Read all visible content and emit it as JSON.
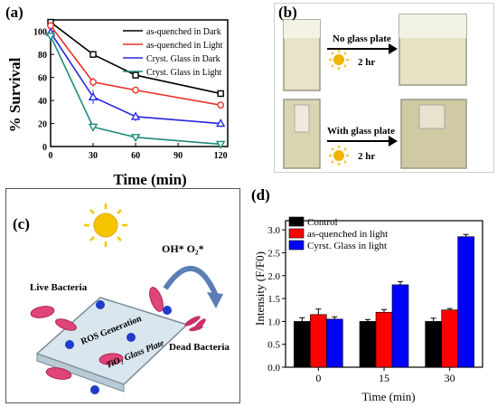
{
  "panels": {
    "a": "(a)",
    "b": "(b)",
    "c": "(c)",
    "d": "(d)"
  },
  "panel_b": {
    "top_label": "No glass plate",
    "top_time": "2 hr",
    "bottom_label": "With glass plate",
    "bottom_time": "2 hr"
  },
  "panel_c": {
    "oh_label": "OH* O₂*",
    "live_bacteria": "Live Bacteria",
    "ros_generation": "ROS Generation",
    "tio2_plate": "TiO₂ Glass Plate",
    "dead_bacteria": "Dead Bacteria"
  },
  "chart_data": [
    {
      "type": "line",
      "xlabel": "Time (min)",
      "ylabel": "% Survival",
      "x": [
        0,
        30,
        60,
        120
      ],
      "xticks": [
        "0",
        "30",
        "60",
        "90",
        "120"
      ],
      "yticks": [
        "0",
        "20",
        "40",
        "60",
        "80",
        "100"
      ],
      "xlim": [
        0,
        125
      ],
      "ylim": [
        0,
        110
      ],
      "legend_position": "top-right",
      "series": [
        {
          "name": "as-quenched in Dark",
          "values": [
            108,
            80,
            62,
            46
          ],
          "errors": [
            2,
            3,
            3,
            3
          ],
          "color": "#000000",
          "marker": "square"
        },
        {
          "name": "as-quenched in Light",
          "values": [
            105,
            56,
            49,
            36
          ],
          "errors": [
            3,
            4,
            3,
            2
          ],
          "color": "#e8312a",
          "marker": "circle"
        },
        {
          "name": "Cryst. Glass in Dark",
          "values": [
            99,
            43,
            26,
            20
          ],
          "errors": [
            3,
            6,
            4,
            3
          ],
          "color": "#2727e0",
          "marker": "triangle"
        },
        {
          "name": "Cryst. Glass in Light",
          "values": [
            96,
            17,
            8,
            2
          ],
          "errors": [
            2,
            2,
            1,
            1
          ],
          "color": "#1e8a7a",
          "marker": "triangle-down"
        }
      ]
    },
    {
      "type": "bar",
      "xlabel": "Time (min)",
      "ylabel": "Intensity (F/F0)",
      "categories": [
        "0",
        "15",
        "30"
      ],
      "yticks": [
        "0.0",
        "0.5",
        "1.0",
        "1.5",
        "2.0",
        "2.5",
        "3.0"
      ],
      "ylim": [
        0,
        3.2
      ],
      "legend_position": "top-left",
      "series": [
        {
          "name": "Control",
          "values": [
            1.0,
            1.0,
            1.0
          ],
          "errors": [
            0.08,
            0.04,
            0.07
          ],
          "color": "#000000"
        },
        {
          "name": "as-quenched in light",
          "values": [
            1.15,
            1.2,
            1.25
          ],
          "errors": [
            0.12,
            0.06,
            0.03
          ],
          "color": "#ff0000"
        },
        {
          "name": "Cyrst. Glass in light",
          "values": [
            1.05,
            1.8,
            2.85
          ],
          "errors": [
            0.05,
            0.07,
            0.05
          ],
          "color": "#0000ff"
        }
      ]
    }
  ]
}
